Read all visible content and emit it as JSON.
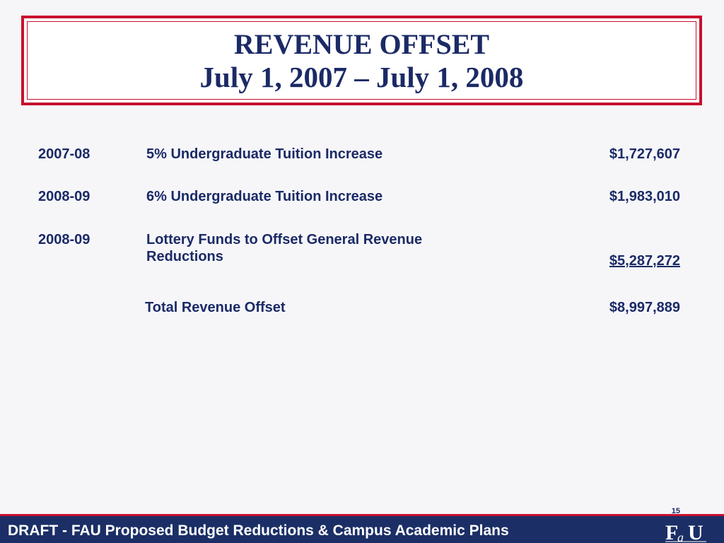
{
  "title": {
    "line1": "REVENUE OFFSET",
    "line2": "July 1, 2007 – July 1, 2008"
  },
  "rows": [
    {
      "year": "2007-08",
      "description": "5% Undergraduate Tuition Increase",
      "amount": "$1,727,607"
    },
    {
      "year": "2008-09",
      "description": "6% Undergraduate Tuition Increase",
      "amount": "$1,983,010"
    },
    {
      "year": "2008-09",
      "description": "Lottery Funds to Offset General Revenue Reductions",
      "amount": "$5,287,272"
    }
  ],
  "total": {
    "label": "Total Revenue Offset",
    "amount": "$8,997,889"
  },
  "footer": {
    "text": "DRAFT - FAU Proposed Budget Reductions & Campus Academic Plans",
    "logo": "FAU"
  },
  "page_number": "15",
  "colors": {
    "navy": "#1b2a66",
    "red": "#c8102e",
    "background": "#f6f6f9"
  }
}
